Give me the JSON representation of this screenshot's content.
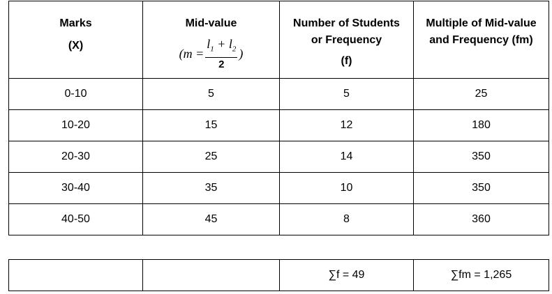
{
  "headers": {
    "col1": {
      "line1": "Marks",
      "line2": "(X)"
    },
    "col2": {
      "line1": "Mid-value",
      "formula_lhs": "(m =",
      "formula_num_l1": "l",
      "formula_num_sub1": "1",
      "formula_plus": " + ",
      "formula_num_l2": "l",
      "formula_num_sub2": "2",
      "formula_den": "2",
      "formula_rhs": ")"
    },
    "col3": {
      "line1": "Number of Students",
      "line2": "or Frequency",
      "line3": "(f)"
    },
    "col4": {
      "line1": "Multiple of Mid-value",
      "line2": "and Frequency (fm)"
    }
  },
  "rows": [
    {
      "marks": "0-10",
      "mid": "5",
      "freq": "5",
      "fm": "25"
    },
    {
      "marks": "10-20",
      "mid": "15",
      "freq": "12",
      "fm": "180"
    },
    {
      "marks": "20-30",
      "mid": "25",
      "freq": "14",
      "fm": "350"
    },
    {
      "marks": "30-40",
      "mid": "35",
      "freq": "10",
      "fm": "350"
    },
    {
      "marks": "40-50",
      "mid": "45",
      "freq": "8",
      "fm": "360"
    }
  ],
  "totals": {
    "col1": "",
    "col2": "",
    "sum_f": "∑f = 49",
    "sum_fm": "∑fm = 1,265"
  }
}
